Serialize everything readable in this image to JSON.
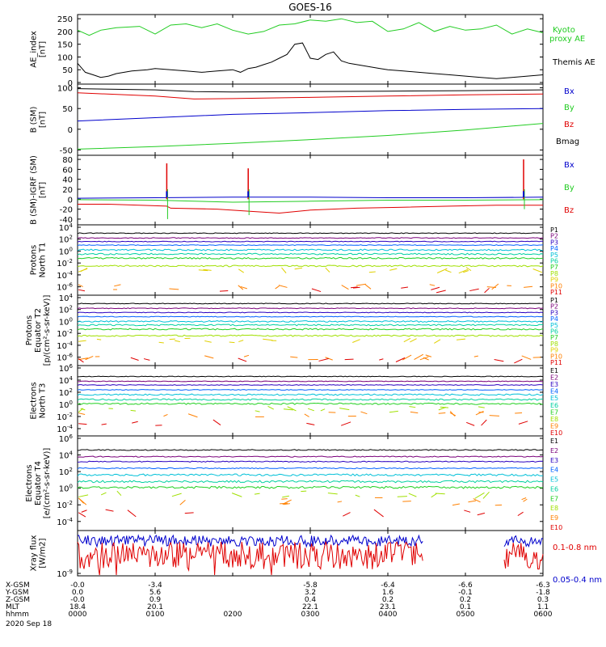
{
  "title": "GOES-16",
  "colors": {
    "black": "#000000",
    "red": "#e00000",
    "green": "#22cc22",
    "blue": "#0000cc",
    "p": [
      "#000000",
      "#7a007a",
      "#2a00c0",
      "#0060ff",
      "#00c0d8",
      "#00d0a0",
      "#20d020",
      "#a0e000",
      "#e0d000",
      "#ff8000",
      "#e00000"
    ],
    "e": [
      "#000000",
      "#7a007a",
      "#2a00c0",
      "#0060ff",
      "#00c0d8",
      "#00d0a0",
      "#20d020",
      "#a0e000",
      "#ff8000",
      "#e00000"
    ]
  },
  "chart_data": [
    {
      "type": "line",
      "ylabel": "AE_index [nT]",
      "yticks": [
        "250",
        "200",
        "150",
        "100",
        "50",
        "0"
      ],
      "ylim": [
        0,
        260
      ],
      "legend": [
        {
          "label": "Kyoto",
          "color": "#22cc22"
        },
        {
          "label": "proxy AE",
          "color": "#22cc22"
        },
        {
          "label": "Themis AE",
          "color": "#000000"
        }
      ],
      "series": [
        {
          "name": "Kyoto proxy AE",
          "color": "#22cc22",
          "x": [
            0,
            0.15,
            0.3,
            0.5,
            0.8,
            1.0,
            1.2,
            1.4,
            1.6,
            1.8,
            2.0,
            2.2,
            2.4,
            2.6,
            2.8,
            3.0,
            3.2,
            3.4,
            3.6,
            3.8,
            4.0,
            4.2,
            4.4,
            4.6,
            4.8,
            5.0,
            5.2,
            5.4,
            5.6,
            5.8,
            6.0
          ],
          "y": [
            205,
            185,
            205,
            215,
            220,
            190,
            225,
            230,
            215,
            230,
            205,
            190,
            200,
            225,
            230,
            245,
            240,
            250,
            235,
            240,
            200,
            210,
            235,
            200,
            220,
            205,
            210,
            225,
            190,
            210,
            195
          ]
        },
        {
          "name": "Themis AE",
          "color": "#000000",
          "x": [
            0,
            0.1,
            0.2,
            0.3,
            0.4,
            0.5,
            0.7,
            0.9,
            1.0,
            1.2,
            1.4,
            1.6,
            1.8,
            2.0,
            2.1,
            2.2,
            2.3,
            2.4,
            2.5,
            2.6,
            2.7,
            2.8,
            2.9,
            3.0,
            3.1,
            3.2,
            3.3,
            3.4,
            3.5,
            3.6,
            3.7,
            3.8,
            3.9,
            4.0,
            4.2,
            4.4,
            4.6,
            4.8,
            5.0,
            5.2,
            5.4,
            5.6,
            5.8,
            6.0
          ],
          "y": [
            75,
            40,
            30,
            20,
            25,
            35,
            45,
            50,
            55,
            50,
            45,
            40,
            45,
            50,
            40,
            55,
            60,
            70,
            80,
            95,
            110,
            150,
            155,
            95,
            90,
            110,
            120,
            85,
            75,
            70,
            65,
            60,
            55,
            50,
            45,
            40,
            35,
            30,
            25,
            20,
            15,
            20,
            25,
            30
          ]
        }
      ]
    },
    {
      "type": "line",
      "ylabel": "B (SM) [nT]",
      "yticks": [
        "100",
        "50",
        "0",
        "-50"
      ],
      "ylim": [
        -55,
        105
      ],
      "legend": [
        {
          "label": "Bx",
          "color": "#0000cc"
        },
        {
          "label": "By",
          "color": "#22cc22"
        },
        {
          "label": "Bz",
          "color": "#e00000"
        },
        {
          "label": "Bmag",
          "color": "#000000"
        }
      ],
      "series": [
        {
          "name": "Bmag",
          "color": "#000000",
          "x": [
            0,
            1,
            1.5,
            2,
            3,
            4,
            5,
            6
          ],
          "y": [
            98,
            95,
            91,
            90,
            91,
            92,
            93,
            95
          ]
        },
        {
          "name": "Bz",
          "color": "#e00000",
          "x": [
            0,
            1,
            1.5,
            2,
            3,
            4,
            5,
            6
          ],
          "y": [
            88,
            80,
            73,
            74,
            77,
            80,
            83,
            85
          ]
        },
        {
          "name": "Bx",
          "color": "#0000cc",
          "x": [
            0,
            1,
            2,
            3,
            4,
            5,
            6
          ],
          "y": [
            20,
            28,
            36,
            40,
            45,
            48,
            50
          ]
        },
        {
          "name": "By",
          "color": "#22cc22",
          "x": [
            0,
            1,
            2,
            3,
            4,
            5,
            6
          ],
          "y": [
            -48,
            -42,
            -34,
            -25,
            -15,
            -2,
            14
          ]
        }
      ]
    },
    {
      "type": "line",
      "ylabel": "B (SM)-IGRF (SM) [nT]",
      "yticks": [
        "80",
        "60",
        "40",
        "20",
        "0",
        "-20",
        "-40"
      ],
      "ylim": [
        -45,
        85
      ],
      "legend": [
        {
          "label": "Bx",
          "color": "#0000cc"
        },
        {
          "label": "By",
          "color": "#22cc22"
        },
        {
          "label": "Bz",
          "color": "#e00000"
        }
      ],
      "series": [
        {
          "name": "Bz",
          "color": "#e00000",
          "x": [
            0,
            0.4,
            0.8,
            1.15,
            1.2,
            1.8,
            2.2,
            2.6,
            3.0,
            3.6,
            4.2,
            4.8,
            5.4,
            5.75,
            5.8,
            6.0
          ],
          "y": [
            -10,
            -10,
            -12,
            -14,
            -18,
            -20,
            -24,
            -28,
            -22,
            -18,
            -16,
            -14,
            -12,
            -12,
            -12,
            -12
          ]
        },
        {
          "name": "Bx",
          "color": "#0000cc",
          "x": [
            0,
            1,
            2,
            3,
            4,
            5,
            6
          ],
          "y": [
            2,
            3,
            4,
            4,
            3,
            3,
            4
          ]
        },
        {
          "name": "By",
          "color": "#22cc22",
          "x": [
            0,
            1,
            2,
            3,
            4,
            5,
            6
          ],
          "y": [
            -1,
            -2,
            -6,
            -4,
            -2,
            -2,
            -1
          ]
        }
      ],
      "spikes": [
        {
          "x": 1.15,
          "top": 72,
          "bottom": -40
        },
        {
          "x": 2.2,
          "top": 62,
          "bottom": -32
        },
        {
          "x": 5.75,
          "top": 80,
          "bottom": -20
        }
      ]
    },
    {
      "type": "line",
      "ylabel": "Protons North T1",
      "yticks": [
        "10^4",
        "10^2",
        "10^0",
        "10^-2",
        "10^-4",
        "10^-6"
      ],
      "ylim": [
        -7,
        4
      ],
      "legend": [
        "P1",
        "P2",
        "P3",
        "P4",
        "P5",
        "P6",
        "P7",
        "P8",
        "P9",
        "P10",
        "P11"
      ],
      "log_levels": [
        3.0,
        2.2,
        1.6,
        1.0,
        0.2,
        -0.5,
        -1.2,
        -2.5,
        -3.2,
        -6.0,
        -6.5
      ]
    },
    {
      "type": "line",
      "ylabel": "Protons Equator T2 [p/(cm²-s-sr-keV)]",
      "yticks": [
        "10^4",
        "10^2",
        "10^0",
        "10^-2",
        "10^-4",
        "10^-6"
      ],
      "ylim": [
        -7,
        4
      ],
      "legend": [
        "P1",
        "P2",
        "P3",
        "P4",
        "P5",
        "P6",
        "P7",
        "P8",
        "P9",
        "P10",
        "P11"
      ],
      "log_levels": [
        3.0,
        2.2,
        1.5,
        0.8,
        0.0,
        -0.6,
        -1.3,
        -2.4,
        -3.3,
        -6.0,
        -6.5
      ]
    },
    {
      "type": "line",
      "ylabel": "Electrons North T3",
      "yticks": [
        "10^6",
        "10^4",
        "10^2",
        "10^0",
        "10^-2",
        "10^-4"
      ],
      "ylim": [
        -4.8,
        6
      ],
      "legend": [
        "E1",
        "E2",
        "E3",
        "E4",
        "E5",
        "E6",
        "E7",
        "E8",
        "E9",
        "E10"
      ],
      "log_levels": [
        4.6,
        3.8,
        3.2,
        2.4,
        1.6,
        0.8,
        0.1,
        -0.8,
        -1.6,
        -3.0
      ]
    },
    {
      "type": "line",
      "ylabel": "Electrons Equator T4 [e/(cm²-s-sr-keV)]",
      "yticks": [
        "10^6",
        "10^4",
        "10^2",
        "10^0",
        "10^-2",
        "10^-4"
      ],
      "ylim": [
        -4.8,
        6
      ],
      "legend": [
        "E1",
        "E2",
        "E3",
        "E4",
        "E5",
        "E6",
        "E7",
        "E8",
        "E9",
        "E10"
      ],
      "log_levels": [
        4.6,
        3.8,
        3.2,
        2.4,
        1.6,
        0.8,
        0.1,
        -0.8,
        -1.6,
        -3.0
      ]
    },
    {
      "type": "line",
      "ylabel": "Xray flux [W/m2]",
      "yticks": [
        "10^-9"
      ],
      "legend": [
        {
          "label": "0.1-0.8 nm",
          "color": "#e00000"
        },
        {
          "label": "0.05-0.4 nm",
          "color": "#0000cc"
        }
      ]
    }
  ],
  "x_axis": {
    "rows": [
      {
        "label": "X-GSM",
        "values": [
          "-0.0",
          "-3.4",
          "",
          "-5.8",
          "-6.4",
          "-6.6",
          "-6.3"
        ]
      },
      {
        "label": "Y-GSM",
        "values": [
          "0.0",
          "5.6",
          "",
          "3.2",
          "1.6",
          "-0.1",
          "-1.8"
        ]
      },
      {
        "label": "Z-GSM",
        "values": [
          "-0.0",
          "0.9",
          "",
          "0.4",
          "0.2",
          "0.2",
          "0.3"
        ]
      },
      {
        "label": "MLT",
        "values": [
          "18.4",
          "20.1",
          "",
          "22.1",
          "23.1",
          "0.1",
          "1.1"
        ]
      },
      {
        "label": "hhmm",
        "values": [
          "0000",
          "0100",
          "0200",
          "0300",
          "0400",
          "0500",
          "0600"
        ]
      }
    ],
    "date": "2020 Sep 18"
  }
}
